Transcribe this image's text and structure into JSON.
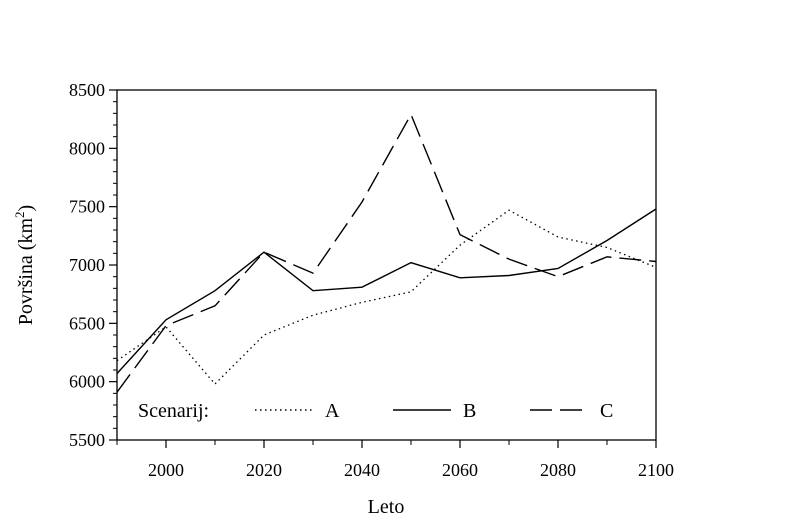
{
  "chart_data": {
    "type": "line",
    "title": "",
    "xlabel": "Leto",
    "ylabel_main": "Površina (km",
    "ylabel_sup": "2",
    "ylabel_close": ")",
    "xlim": [
      1990,
      2100
    ],
    "ylim": [
      5500,
      8500
    ],
    "xticks": [
      2000,
      2020,
      2040,
      2060,
      2080,
      2100
    ],
    "yticks": [
      5500,
      6000,
      6500,
      7000,
      7500,
      8000,
      8500
    ],
    "x": [
      1990,
      2000,
      2010,
      2020,
      2030,
      2040,
      2050,
      2060,
      2070,
      2080,
      2090,
      2100
    ],
    "legend_title": "Scenarij:",
    "legend_position": "bottom",
    "series": [
      {
        "name": "A",
        "dash": "dotted",
        "values": [
          6180,
          6470,
          5980,
          6400,
          6570,
          6680,
          6770,
          7170,
          7470,
          7240,
          7150,
          6980
        ]
      },
      {
        "name": "B",
        "dash": "solid",
        "values": [
          6070,
          6530,
          6780,
          7110,
          6780,
          6810,
          7020,
          6890,
          6910,
          6970,
          7210,
          7480
        ]
      },
      {
        "name": "C",
        "dash": "dashed",
        "values": [
          5910,
          6480,
          6650,
          7110,
          6930,
          7540,
          8290,
          7260,
          7050,
          6900,
          7070,
          7030
        ]
      }
    ]
  }
}
